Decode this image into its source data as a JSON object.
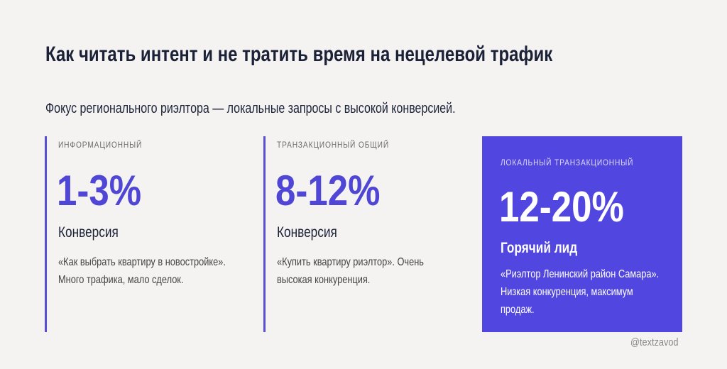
{
  "header": {
    "title": "Как читать интент и не тратить время на нецелевой трафик",
    "subtitle": "Фокус регионального риэлтора — локальные запросы с высокой конверсией."
  },
  "cards": [
    {
      "label": "ИНФОРМАЦИОННЫЙ",
      "value": "1-3%",
      "caption": "Конверсия",
      "description": "«Как выбрать квартиру в новостройке». Много трафика, мало сделок."
    },
    {
      "label": "ТРАНЗАКЦИОННЫЙ ОБЩИЙ",
      "value": "8-12%",
      "caption": "Конверсия",
      "description": "«Купить квартиру риэлтор». Очень высокая конкуренция."
    },
    {
      "label": "ЛОКАЛЬНЫЙ ТРАНЗАКЦИОННЫЙ",
      "value": "12-20%",
      "caption": "Горячий лид",
      "description": "«Риэлтор Ленинский район Самара». Низкая конкуренция, максимум продаж."
    }
  ],
  "footer": {
    "watermark": "@textzavod"
  }
}
